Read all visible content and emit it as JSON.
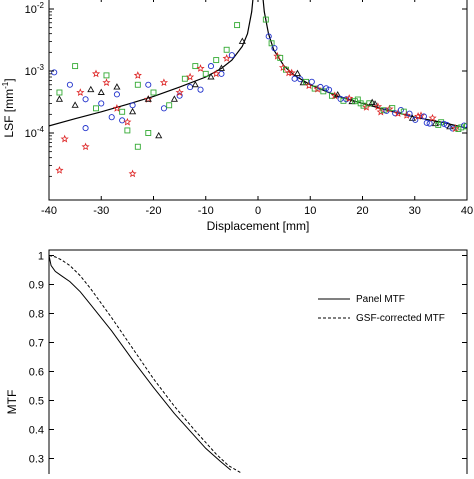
{
  "chart_data": [
    {
      "type": "scatter",
      "xlabel": "Displacement  [mm]",
      "ylabel": "LSF  [mm",
      "ylabel_sup": "-1",
      "ylabel_end": "]",
      "yscale": "log",
      "xlim": [
        -40,
        40
      ],
      "ylim": [
        1.5e-05,
        0.012
      ],
      "grid": false,
      "xticks": [
        -40,
        -30,
        -20,
        -10,
        0,
        10,
        20,
        30,
        40
      ],
      "xtick_labels": [
        "-40",
        "-30",
        "-20",
        "-10",
        "0",
        "10",
        "20",
        "30",
        "40"
      ],
      "yticks": [
        {
          "value": 0.0001,
          "base": "10",
          "exp": "-4"
        },
        {
          "value": 0.001,
          "base": "10",
          "exp": "-3"
        },
        {
          "value": 0.01,
          "base": "10",
          "exp": "-2"
        }
      ],
      "marker_colors": {
        "blue": "#2233cc",
        "green": "#33aa33",
        "red": "#dd2222",
        "black": "#111111"
      },
      "fit_curve": {
        "color": "#000000",
        "left": [
          [
            -40,
            0.00013
          ],
          [
            -35,
            0.00017
          ],
          [
            -30,
            0.00022
          ],
          [
            -25,
            0.00029
          ],
          [
            -20,
            0.00039
          ],
          [
            -15,
            0.00055
          ],
          [
            -10,
            0.0008
          ],
          [
            -7,
            0.0011
          ],
          [
            -5,
            0.0015
          ],
          [
            -3,
            0.0025
          ],
          [
            -2,
            0.004
          ],
          [
            -1.2,
            0.009
          ],
          [
            -0.8,
            0.02
          ]
        ],
        "right": [
          [
            0.8,
            0.02
          ],
          [
            1.2,
            0.009
          ],
          [
            2,
            0.004
          ],
          [
            3,
            0.0022
          ],
          [
            5,
            0.0012
          ],
          [
            7,
            0.00085
          ],
          [
            10,
            0.0006
          ],
          [
            15,
            0.0004
          ],
          [
            20,
            0.0003
          ],
          [
            25,
            0.00023
          ],
          [
            30,
            0.00018
          ],
          [
            35,
            0.00015
          ],
          [
            40,
            0.00012
          ]
        ]
      },
      "series": [
        {
          "marker": "circle",
          "color_key": "blue",
          "points": [
            [
              -39,
              0.00095
            ],
            [
              -36,
              0.0006
            ],
            [
              -33,
              0.00035
            ],
            [
              -30,
              0.0003
            ],
            [
              -27,
              0.00042
            ],
            [
              -24,
              0.00028
            ],
            [
              -21,
              0.0006
            ],
            [
              -18,
              0.00025
            ],
            [
              -15,
              0.0004
            ],
            [
              -13,
              0.00055
            ],
            [
              -11,
              0.0005
            ],
            [
              -9,
              0.0012
            ],
            [
              -7,
              0.0009
            ],
            [
              -5,
              0.0018
            ],
            [
              -28,
              0.00018
            ],
            [
              -33,
              0.00012
            ],
            [
              -26,
              0.00016
            ]
          ]
        },
        {
          "marker": "square",
          "color_key": "green",
          "points": [
            [
              -38,
              0.00045
            ],
            [
              -35,
              0.0012
            ],
            [
              -31,
              0.00025
            ],
            [
              -29,
              0.00085
            ],
            [
              -26,
              0.00022
            ],
            [
              -23,
              0.0006
            ],
            [
              -20,
              0.00045
            ],
            [
              -17,
              0.00028
            ],
            [
              -14,
              0.00075
            ],
            [
              -12,
              0.0012
            ],
            [
              -10,
              0.0009
            ],
            [
              -8,
              0.0015
            ],
            [
              -6,
              0.0022
            ],
            [
              -4,
              0.0055
            ],
            [
              -21,
              0.0001
            ],
            [
              -25,
              0.00011
            ],
            [
              -23,
              6e-05
            ]
          ]
        },
        {
          "marker": "star",
          "color_key": "red",
          "points": [
            [
              -37,
              8e-05
            ],
            [
              -34,
              0.00045
            ],
            [
              -31,
              0.0009
            ],
            [
              -29,
              0.00065
            ],
            [
              -27,
              0.00025
            ],
            [
              -25,
              0.00015
            ],
            [
              -23,
              0.00085
            ],
            [
              -21,
              0.00035
            ],
            [
              -18,
              0.00065
            ],
            [
              -15,
              0.00045
            ],
            [
              -13,
              0.0008
            ],
            [
              -11,
              0.0011
            ],
            [
              -8,
              0.0009
            ],
            [
              -6,
              0.0016
            ],
            [
              -38,
              2.5e-05
            ],
            [
              -24,
              2.2e-05
            ],
            [
              -33,
              6e-05
            ]
          ]
        },
        {
          "marker": "triangle",
          "color_key": "black",
          "points": [
            [
              -38,
              0.00035
            ],
            [
              -35,
              0.00028
            ],
            [
              -32,
              0.0005
            ],
            [
              -30,
              0.00045
            ],
            [
              -27,
              0.00055
            ],
            [
              -24,
              0.00022
            ],
            [
              -21,
              0.00035
            ],
            [
              -19,
              9e-05
            ],
            [
              -16,
              0.00035
            ],
            [
              -12,
              0.0006
            ],
            [
              -9,
              0.0008
            ],
            [
              -7,
              0.0011
            ],
            [
              -3,
              0.003
            ]
          ]
        }
      ]
    },
    {
      "type": "line",
      "ylabel": "MTF",
      "xlim": [
        0,
        1
      ],
      "ylim": [
        0.25,
        1
      ],
      "grid": false,
      "yticks": [
        0.3,
        0.4,
        0.5,
        0.6,
        0.7,
        0.8,
        0.9,
        1
      ],
      "ytick_labels": [
        "0.3",
        "0.4",
        "0.5",
        "0.6",
        "0.7",
        "0.8",
        "0.9",
        "1"
      ],
      "legend": {
        "placement": "top-right",
        "entries": [
          "Panel MTF",
          "GSF-corrected MTF"
        ]
      },
      "series": [
        {
          "name": "Panel MTF",
          "style": "solid",
          "points": [
            [
              0,
              1
            ],
            [
              0.01,
              0.965
            ],
            [
              0.03,
              0.945
            ],
            [
              0.06,
              0.93
            ],
            [
              0.1,
              0.91
            ],
            [
              0.15,
              0.875
            ],
            [
              0.2,
              0.83
            ],
            [
              0.3,
              0.74
            ],
            [
              0.4,
              0.64
            ],
            [
              0.5,
              0.545
            ],
            [
              0.6,
              0.455
            ],
            [
              0.7,
              0.375
            ],
            [
              0.75,
              0.335
            ],
            [
              0.82,
              0.29
            ],
            [
              0.87,
              0.26
            ]
          ]
        },
        {
          "name": "GSF-corrected MTF",
          "style": "dashed",
          "points": [
            [
              0,
              1
            ],
            [
              0.03,
              0.995
            ],
            [
              0.06,
              0.985
            ],
            [
              0.1,
              0.965
            ],
            [
              0.15,
              0.93
            ],
            [
              0.2,
              0.885
            ],
            [
              0.3,
              0.785
            ],
            [
              0.4,
              0.68
            ],
            [
              0.5,
              0.575
            ],
            [
              0.6,
              0.48
            ],
            [
              0.7,
              0.395
            ],
            [
              0.8,
              0.315
            ],
            [
              0.86,
              0.275
            ],
            [
              0.92,
              0.25
            ]
          ]
        }
      ]
    }
  ]
}
